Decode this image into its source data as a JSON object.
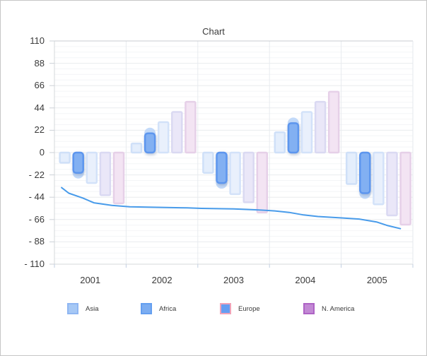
{
  "window": {
    "title": "Chart"
  },
  "chart_data": {
    "type": "bar",
    "title": "Chart",
    "subtitle": "",
    "categories": [
      "2001",
      "2002",
      "2003",
      "2004",
      "2005"
    ],
    "series": [
      {
        "name": "Asia",
        "values": [
          -10,
          9,
          -20,
          20,
          -31
        ],
        "fill": "#e4eefc",
        "stroke": "#cfe0f8",
        "style": "flat"
      },
      {
        "name": "Africa",
        "values": [
          -20,
          19,
          -30,
          29,
          -40
        ],
        "fill": "#82b0f2",
        "stroke": "#5d96ee",
        "style": "highlighted",
        "halo_color": "#b9d3f8"
      },
      {
        "name": "Europe",
        "values": [
          -30,
          30,
          -41,
          40,
          -51
        ],
        "fill": "#e9f0fc",
        "stroke": "#d3e2f9",
        "style": "flat"
      },
      {
        "name": "N. America",
        "values": [
          -42,
          40,
          -49,
          50,
          -62
        ],
        "fill": "#eae7f8",
        "stroke": "#dad9f2",
        "style": "flat"
      },
      {
        "name": "",
        "values": [
          -50,
          50,
          -59,
          60,
          -71
        ],
        "fill": "#f3e4f3",
        "stroke": "#e6d0e8",
        "style": "flat"
      }
    ],
    "line_overlay": {
      "color": "#489bea",
      "points": [
        [
          0.02,
          -34.5
        ],
        [
          0.04,
          -40.0
        ],
        [
          0.08,
          -45.0
        ],
        [
          0.11,
          -49.5
        ],
        [
          0.16,
          -52.0
        ],
        [
          0.21,
          -53.5
        ],
        [
          0.3,
          -54.0
        ],
        [
          0.37,
          -54.5
        ],
        [
          0.41,
          -55.0
        ],
        [
          0.5,
          -55.5
        ],
        [
          0.57,
          -56.5
        ],
        [
          0.615,
          -57.5
        ],
        [
          0.655,
          -59.0
        ],
        [
          0.695,
          -61.5
        ],
        [
          0.735,
          -63.0
        ],
        [
          0.805,
          -64.5
        ],
        [
          0.85,
          -65.5
        ],
        [
          0.9,
          -68.5
        ],
        [
          0.93,
          -72.0
        ],
        [
          0.965,
          -75.0
        ]
      ]
    },
    "ylim": [
      -110,
      110
    ],
    "ytick_step": 22,
    "ytick_labels": [
      "110",
      "88",
      "66",
      "44",
      "22",
      "0",
      "- 22",
      "- 44",
      "- 66",
      "- 88",
      "- 110"
    ],
    "minor_grid_step": 5.5,
    "grid": "horizontal-minor-and-major, vertical-at-category-boundaries",
    "legend_position": "bottom",
    "legend": [
      {
        "label": "Asia",
        "fill": "#a6c8f5",
        "stroke": "#8fb6f2"
      },
      {
        "label": "Africa",
        "fill": "#7cadf1",
        "stroke": "#649ff0"
      },
      {
        "label": "Europe",
        "fill": "#659df2",
        "stroke": "#f0a3b8"
      },
      {
        "label": "N. America",
        "fill": "#c289d4",
        "stroke": "#ae63c5"
      }
    ]
  },
  "colors": {
    "line_accent": "#489bea",
    "highlight_bar": "#82b0f2",
    "grid_minor": "#f4f5f7",
    "grid_major": "#e9ebee",
    "axis_border": "#d5d8db",
    "text": "#3a3a3a"
  }
}
